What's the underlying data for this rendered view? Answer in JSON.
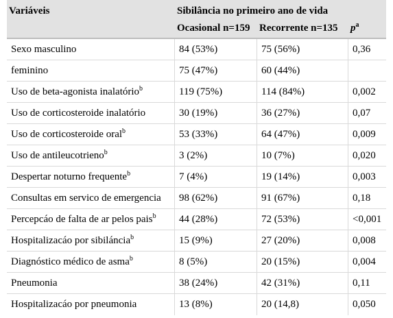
{
  "table": {
    "header": {
      "variables_label": "Variáveis",
      "group_title": "Sibilância no primeiro ano de vida",
      "col_occasional": "Ocasional n=159",
      "col_recurrent": "Recorrente n=135",
      "col_p": "p",
      "col_p_sup": "a"
    },
    "rows": [
      {
        "label": "Sexo masculino",
        "sup": "",
        "occasional": "84 (53%)",
        "recurrent": "75 (56%)",
        "p": "0,36"
      },
      {
        "label": "feminino",
        "sup": "",
        "occasional": "75 (47%)",
        "recurrent": "60 (44%)",
        "p": ""
      },
      {
        "label": "Uso de beta-agonista inalatório",
        "sup": "b",
        "occasional": "119 (75%)",
        "recurrent": "114 (84%)",
        "p": "0,002"
      },
      {
        "label": "Uso de corticosteroide inalatório",
        "sup": "",
        "occasional": "30 (19%)",
        "recurrent": "36 (27%)",
        "p": "0,07"
      },
      {
        "label": "Uso de corticosteroide oral",
        "sup": "b",
        "occasional": "53 (33%)",
        "recurrent": "64 (47%)",
        "p": "0,009"
      },
      {
        "label": "Uso de antileucotrieno",
        "sup": "b",
        "occasional": "3 (2%)",
        "recurrent": "10 (7%)",
        "p": "0,020"
      },
      {
        "label": "Despertar noturno frequente",
        "sup": "b",
        "occasional": "7 (4%)",
        "recurrent": "19 (14%)",
        "p": "0,003"
      },
      {
        "label": "Consultas em servico de emergencia",
        "sup": "",
        "occasional": "98 (62%)",
        "recurrent": "91 (67%)",
        "p": "0,18"
      },
      {
        "label": "Percepcáo de falta de ar pelos pais",
        "sup": "b",
        "occasional": "44 (28%)",
        "recurrent": "72 (53%)",
        "p": "<0,001"
      },
      {
        "label": "Hospitalizacáo por sibiláncia",
        "sup": "b",
        "occasional": "15 (9%)",
        "recurrent": "27 (20%)",
        "p": "0,008"
      },
      {
        "label": "Diagnóstico médico de asma",
        "sup": "b",
        "occasional": "8 (5%)",
        "recurrent": "20 (15%)",
        "p": "0,004"
      },
      {
        "label": "Pneumonia",
        "sup": "",
        "occasional": "38 (24%)",
        "recurrent": "42 (31%)",
        "p": "0,11"
      },
      {
        "label": "Hospitalizacáo por pneumonia",
        "sup": "",
        "occasional": "13 (8%)",
        "recurrent": "20 (14,8)",
        "p": "0,050"
      }
    ]
  }
}
